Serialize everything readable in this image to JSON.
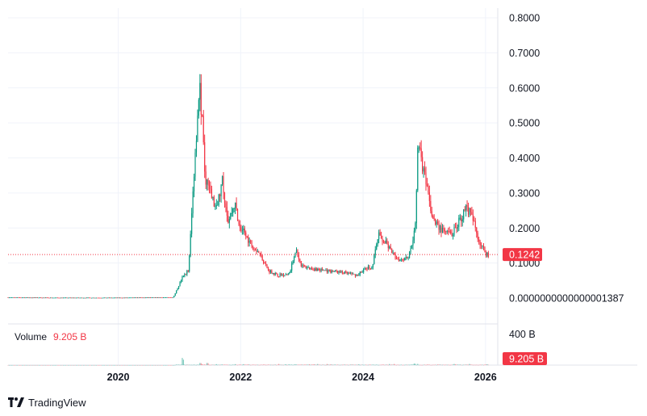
{
  "chart_data": {
    "type": "candlestick",
    "title": "",
    "price_axis": {
      "ticks": [
        "0.8000",
        "0.7000",
        "0.6000",
        "0.5000",
        "0.4000",
        "0.3000",
        "0.2000",
        "0.1000",
        "0.0000000000000001387"
      ],
      "tick_values": [
        0.8,
        0.7,
        0.6,
        0.5,
        0.4,
        0.3,
        0.2,
        0.1,
        0.0
      ],
      "ylim": [
        -0.005,
        0.81
      ]
    },
    "time_axis": {
      "ticks": [
        "2020",
        "2022",
        "2024",
        "2026"
      ],
      "xlim": [
        2018.2,
        2026.2
      ]
    },
    "last_price": {
      "label": "0.1242",
      "value": 0.1242,
      "color": "#f23645"
    },
    "volume": {
      "title": "Volume",
      "value_label": "9.205 B",
      "axis_label": "400 B",
      "axis_value": 400,
      "badge": "9.205 B",
      "badge_color": "#f23645"
    },
    "up_color": "#089981",
    "down_color": "#f23645",
    "grid": true,
    "series_close": [
      [
        2018.2,
        0.002
      ],
      [
        2019.0,
        0.001
      ],
      [
        2020.0,
        0.001
      ],
      [
        2020.9,
        0.002
      ],
      [
        2021.05,
        0.06
      ],
      [
        2021.15,
        0.08
      ],
      [
        2021.25,
        0.4
      ],
      [
        2021.33,
        0.62
      ],
      [
        2021.42,
        0.35
      ],
      [
        2021.5,
        0.3
      ],
      [
        2021.6,
        0.25
      ],
      [
        2021.7,
        0.33
      ],
      [
        2021.8,
        0.22
      ],
      [
        2021.9,
        0.27
      ],
      [
        2022.0,
        0.2
      ],
      [
        2022.15,
        0.16
      ],
      [
        2022.3,
        0.13
      ],
      [
        2022.45,
        0.08
      ],
      [
        2022.6,
        0.065
      ],
      [
        2022.8,
        0.07
      ],
      [
        2022.9,
        0.14
      ],
      [
        2023.0,
        0.09
      ],
      [
        2023.3,
        0.08
      ],
      [
        2023.6,
        0.075
      ],
      [
        2023.9,
        0.065
      ],
      [
        2024.0,
        0.08
      ],
      [
        2024.15,
        0.09
      ],
      [
        2024.25,
        0.18
      ],
      [
        2024.4,
        0.15
      ],
      [
        2024.5,
        0.12
      ],
      [
        2024.6,
        0.11
      ],
      [
        2024.75,
        0.12
      ],
      [
        2024.85,
        0.2
      ],
      [
        2024.9,
        0.45
      ],
      [
        2024.95,
        0.4
      ],
      [
        2025.05,
        0.3
      ],
      [
        2025.15,
        0.22
      ],
      [
        2025.3,
        0.19
      ],
      [
        2025.45,
        0.18
      ],
      [
        2025.6,
        0.23
      ],
      [
        2025.7,
        0.26
      ],
      [
        2025.8,
        0.22
      ],
      [
        2025.9,
        0.16
      ],
      [
        2026.0,
        0.13
      ],
      [
        2026.05,
        0.1242
      ]
    ],
    "volume_spikes": [
      [
        2021.05,
        95
      ],
      [
        2021.35,
        25
      ],
      [
        2021.45,
        30
      ],
      [
        2024.85,
        22
      ]
    ]
  },
  "brand": {
    "name": "TradingView"
  }
}
